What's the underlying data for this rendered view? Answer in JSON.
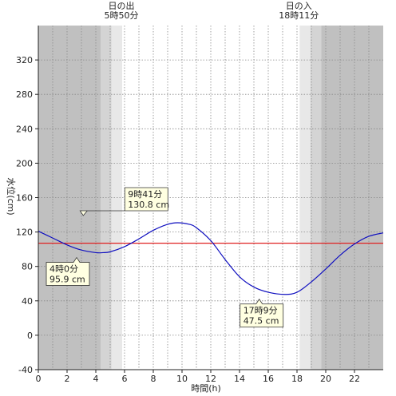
{
  "chart_data": {
    "type": "line",
    "xlabel": "時間(h)",
    "ylabel": "水位(cm)",
    "xlim": [
      0,
      24
    ],
    "ylim": [
      -40,
      360
    ],
    "x_ticks": [
      0,
      2,
      4,
      6,
      8,
      10,
      12,
      14,
      16,
      18,
      20,
      22
    ],
    "y_ticks": [
      -40,
      0,
      40,
      80,
      120,
      160,
      200,
      240,
      280,
      320
    ],
    "grid": true,
    "sunrise": {
      "label": "日の出",
      "time": "5時50分",
      "hour": 5.833
    },
    "sunset": {
      "label": "日の入",
      "time": "18時11分",
      "hour": 18.183
    },
    "twilight_morning": [
      4.333,
      5.833
    ],
    "twilight_evening": [
      18.183,
      19.683
    ],
    "reference_line": {
      "value": 107,
      "color": "#e02020"
    },
    "series": [
      {
        "color": "#1010c0",
        "x": [
          0,
          1,
          2,
          3,
          4,
          4.5,
          5,
          6,
          7,
          8,
          9,
          9.683,
          10.5,
          11,
          12,
          13,
          14,
          15,
          16,
          17.15,
          18,
          19,
          20,
          21,
          22,
          23,
          24
        ],
        "y": [
          121,
          113,
          105,
          99,
          96,
          96,
          97,
          103,
          112,
          122,
          129,
          130.8,
          129,
          125,
          110,
          88,
          68,
          56,
          50,
          47.5,
          50,
          62,
          77,
          93,
          106,
          115,
          119
        ]
      }
    ],
    "annotations": [
      {
        "time": "9時41分",
        "value": "130.8 cm",
        "x": 9.683,
        "y": 130.8
      },
      {
        "time": "4時0分",
        "value": "95.9 cm",
        "x": 4.0,
        "y": 95.9
      },
      {
        "time": "17時9分",
        "value": "47.5 cm",
        "x": 17.15,
        "y": 47.5
      }
    ],
    "colors": {
      "night": "#c0c0c0",
      "twilight_dark": "#d4d4d4",
      "twilight_light": "#e8e8e8",
      "day": "#ffffff",
      "note_fill": "#ffffe1"
    }
  }
}
